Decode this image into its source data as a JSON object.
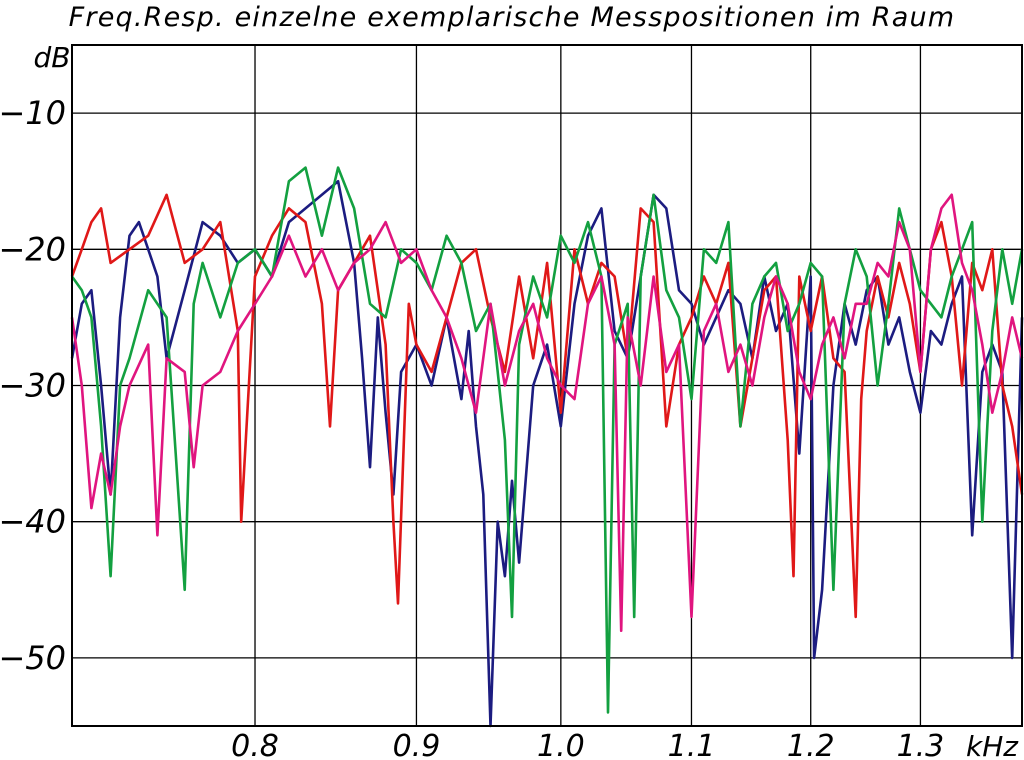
{
  "chart_data": {
    "type": "line",
    "title": "Freq.Resp. einzelne exemplarische Messpositionen im Raum",
    "ylabel": "dB",
    "xunit": "kHz",
    "x_scale": "log",
    "xlim": [
      0.7,
      1.4
    ],
    "ylim": [
      -55,
      -5
    ],
    "xticks": [
      0.8,
      0.9,
      1.0,
      1.1,
      1.2,
      1.3
    ],
    "xtick_labels": [
      "0.8",
      "0.9",
      "1.0",
      "1.1",
      "1.2",
      "1.3"
    ],
    "yticks": [
      -10,
      -20,
      -30,
      -40,
      -50
    ],
    "ytick_labels": [
      "−10",
      "−20",
      "−30",
      "−40",
      "−50"
    ],
    "grid": true,
    "legend": "none",
    "series": [
      {
        "color": "#1c1c80",
        "x": [
          0.7,
          0.705,
          0.71,
          0.715,
          0.72,
          0.725,
          0.73,
          0.735,
          0.74,
          0.745,
          0.75,
          0.76,
          0.77,
          0.78,
          0.79,
          0.8,
          0.81,
          0.82,
          0.83,
          0.84,
          0.85,
          0.86,
          0.865,
          0.87,
          0.875,
          0.88,
          0.885,
          0.89,
          0.9,
          0.91,
          0.92,
          0.93,
          0.935,
          0.94,
          0.945,
          0.95,
          0.955,
          0.96,
          0.965,
          0.97,
          0.98,
          0.99,
          1.0,
          1.01,
          1.02,
          1.03,
          1.04,
          1.05,
          1.06,
          1.07,
          1.08,
          1.09,
          1.1,
          1.11,
          1.12,
          1.13,
          1.14,
          1.15,
          1.16,
          1.17,
          1.18,
          1.19,
          1.2,
          1.203,
          1.21,
          1.22,
          1.23,
          1.24,
          1.25,
          1.26,
          1.27,
          1.28,
          1.29,
          1.3,
          1.31,
          1.32,
          1.33,
          1.34,
          1.35,
          1.36,
          1.37,
          1.38,
          1.39,
          1.4
        ],
        "y": [
          -28,
          -24,
          -23,
          -30,
          -38,
          -25,
          -19,
          -18,
          -20,
          -22,
          -28,
          -23,
          -18,
          -19,
          -21,
          -20,
          -22,
          -18,
          -17,
          -16,
          -15,
          -21,
          -28,
          -36,
          -25,
          -32,
          -38,
          -29,
          -27,
          -30,
          -25,
          -31,
          -26,
          -33,
          -38,
          -55,
          -40,
          -44,
          -37,
          -43,
          -30,
          -27,
          -33,
          -24,
          -19,
          -17,
          -26,
          -28,
          -22,
          -16,
          -17,
          -23,
          -24,
          -27,
          -25,
          -23,
          -24,
          -28,
          -22,
          -26,
          -24,
          -35,
          -22,
          -50,
          -45,
          -30,
          -24,
          -27,
          -23,
          -22,
          -27,
          -25,
          -29,
          -32,
          -26,
          -27,
          -24,
          -22,
          -41,
          -29,
          -27,
          -29,
          -50,
          -25
        ]
      },
      {
        "color": "#e01818",
        "x": [
          0.7,
          0.705,
          0.71,
          0.715,
          0.72,
          0.73,
          0.74,
          0.75,
          0.76,
          0.77,
          0.78,
          0.79,
          0.792,
          0.8,
          0.81,
          0.82,
          0.83,
          0.84,
          0.845,
          0.85,
          0.86,
          0.87,
          0.88,
          0.885,
          0.888,
          0.895,
          0.9,
          0.91,
          0.92,
          0.93,
          0.94,
          0.95,
          0.96,
          0.97,
          0.98,
          0.99,
          1.0,
          1.01,
          1.02,
          1.03,
          1.04,
          1.05,
          1.06,
          1.07,
          1.08,
          1.09,
          1.1,
          1.11,
          1.12,
          1.13,
          1.14,
          1.15,
          1.16,
          1.17,
          1.18,
          1.185,
          1.19,
          1.2,
          1.21,
          1.22,
          1.23,
          1.24,
          1.245,
          1.25,
          1.26,
          1.27,
          1.28,
          1.29,
          1.3,
          1.31,
          1.32,
          1.33,
          1.34,
          1.35,
          1.36,
          1.37,
          1.38,
          1.39,
          1.4
        ],
        "y": [
          -22,
          -20,
          -18,
          -17,
          -21,
          -20,
          -19,
          -16,
          -21,
          -20,
          -18,
          -26,
          -40,
          -22,
          -19,
          -17,
          -18,
          -24,
          -33,
          -23,
          -21,
          -19,
          -27,
          -40,
          -46,
          -24,
          -27,
          -29,
          -25,
          -21,
          -20,
          -25,
          -29,
          -22,
          -28,
          -21,
          -32,
          -20,
          -24,
          -21,
          -22,
          -28,
          -17,
          -18,
          -33,
          -27,
          -25,
          -22,
          -24,
          -21,
          -33,
          -28,
          -23,
          -22,
          -34,
          -44,
          -22,
          -26,
          -22,
          -28,
          -29,
          -47,
          -31,
          -26,
          -22,
          -25,
          -21,
          -24,
          -29,
          -20,
          -18,
          -22,
          -30,
          -21,
          -23,
          -20,
          -30,
          -33,
          -38
        ]
      },
      {
        "color": "#13a040",
        "x": [
          0.7,
          0.705,
          0.71,
          0.715,
          0.72,
          0.725,
          0.73,
          0.74,
          0.75,
          0.755,
          0.76,
          0.765,
          0.77,
          0.78,
          0.79,
          0.8,
          0.81,
          0.82,
          0.83,
          0.84,
          0.85,
          0.86,
          0.87,
          0.88,
          0.89,
          0.9,
          0.91,
          0.92,
          0.93,
          0.94,
          0.95,
          0.96,
          0.965,
          0.97,
          0.98,
          0.99,
          1.0,
          1.01,
          1.02,
          1.03,
          1.035,
          1.04,
          1.05,
          1.055,
          1.06,
          1.07,
          1.08,
          1.09,
          1.1,
          1.11,
          1.12,
          1.13,
          1.14,
          1.15,
          1.16,
          1.17,
          1.18,
          1.19,
          1.2,
          1.21,
          1.22,
          1.23,
          1.24,
          1.25,
          1.26,
          1.27,
          1.28,
          1.29,
          1.3,
          1.31,
          1.32,
          1.33,
          1.34,
          1.35,
          1.36,
          1.37,
          1.38,
          1.39,
          1.4
        ],
        "y": [
          -22,
          -23,
          -25,
          -33,
          -44,
          -30,
          -28,
          -23,
          -25,
          -35,
          -45,
          -24,
          -21,
          -25,
          -21,
          -20,
          -22,
          -15,
          -14,
          -19,
          -14,
          -17,
          -24,
          -25,
          -20,
          -21,
          -23,
          -19,
          -21,
          -26,
          -24,
          -34,
          -47,
          -27,
          -22,
          -25,
          -19,
          -21,
          -18,
          -22,
          -54,
          -27,
          -24,
          -47,
          -22,
          -16,
          -23,
          -25,
          -31,
          -20,
          -21,
          -18,
          -33,
          -24,
          -22,
          -21,
          -26,
          -24,
          -21,
          -22,
          -45,
          -24,
          -20,
          -22,
          -30,
          -24,
          -17,
          -20,
          -23,
          -24,
          -25,
          -22,
          -20,
          -18,
          -40,
          -26,
          -20,
          -24,
          -20
        ]
      },
      {
        "color": "#e0157f",
        "x": [
          0.7,
          0.705,
          0.71,
          0.715,
          0.72,
          0.725,
          0.73,
          0.74,
          0.745,
          0.75,
          0.76,
          0.765,
          0.77,
          0.78,
          0.79,
          0.8,
          0.81,
          0.82,
          0.83,
          0.84,
          0.85,
          0.86,
          0.87,
          0.88,
          0.89,
          0.9,
          0.91,
          0.92,
          0.93,
          0.94,
          0.95,
          0.96,
          0.97,
          0.98,
          0.99,
          1.0,
          1.01,
          1.02,
          1.03,
          1.04,
          1.045,
          1.05,
          1.06,
          1.07,
          1.08,
          1.09,
          1.1,
          1.11,
          1.12,
          1.13,
          1.14,
          1.15,
          1.16,
          1.17,
          1.18,
          1.19,
          1.2,
          1.21,
          1.22,
          1.23,
          1.24,
          1.25,
          1.26,
          1.27,
          1.28,
          1.29,
          1.3,
          1.31,
          1.32,
          1.33,
          1.34,
          1.35,
          1.36,
          1.37,
          1.38,
          1.39,
          1.4
        ],
        "y": [
          -25,
          -30,
          -39,
          -35,
          -38,
          -33,
          -30,
          -27,
          -41,
          -28,
          -29,
          -36,
          -30,
          -29,
          -26,
          -24,
          -22,
          -19,
          -22,
          -20,
          -23,
          -21,
          -20,
          -18,
          -21,
          -20,
          -23,
          -25,
          -28,
          -32,
          -24,
          -30,
          -26,
          -24,
          -28,
          -30,
          -31,
          -24,
          -22,
          -27,
          -48,
          -25,
          -30,
          -22,
          -29,
          -27,
          -47,
          -26,
          -24,
          -29,
          -27,
          -30,
          -25,
          -22,
          -24,
          -29,
          -31,
          -27,
          -25,
          -28,
          -24,
          -24,
          -21,
          -22,
          -18,
          -20,
          -29,
          -20,
          -17,
          -16,
          -21,
          -23,
          -27,
          -32,
          -29,
          -25,
          -28
        ]
      }
    ]
  }
}
